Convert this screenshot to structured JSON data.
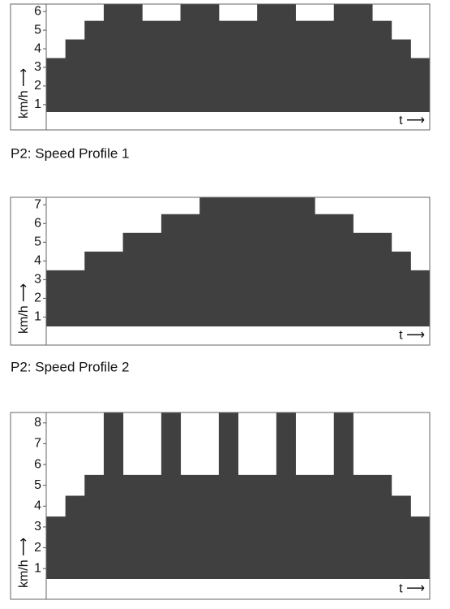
{
  "chart_data": [
    {
      "type": "step",
      "color": "#404040",
      "xlim": [
        0,
        20
      ],
      "ylim": [
        0.6,
        6.4
      ],
      "yticks": [
        1,
        2,
        3,
        4,
        5,
        6
      ],
      "ylabel": "km/h ⟶",
      "xlabel": "t ⟶",
      "caption": "P2: Speed Profile 1",
      "x": [
        0,
        1,
        2,
        3,
        5,
        7,
        9,
        11,
        13,
        15,
        17,
        18,
        19
      ],
      "values": [
        3.5,
        4.5,
        5.5,
        6.4,
        5.5,
        6.4,
        5.5,
        6.4,
        5.5,
        6.4,
        5.5,
        4.5,
        3.5
      ]
    },
    {
      "type": "step",
      "color": "#404040",
      "xlim": [
        0,
        20
      ],
      "ylim": [
        0.5,
        7.4
      ],
      "yticks": [
        1,
        2,
        3,
        4,
        5,
        6,
        7
      ],
      "ylabel": "km/h ⟶",
      "xlabel": "t ⟶",
      "caption": "P2: Speed Profile 2",
      "x": [
        0,
        2,
        4,
        6,
        8,
        14,
        16,
        18,
        19
      ],
      "values": [
        3.5,
        4.5,
        5.5,
        6.5,
        7.4,
        6.5,
        5.5,
        4.5,
        3.5
      ]
    },
    {
      "type": "step",
      "color": "#404040",
      "xlim": [
        0,
        20
      ],
      "ylim": [
        0.5,
        8.5
      ],
      "yticks": [
        1,
        2,
        3,
        4,
        5,
        6,
        7,
        8
      ],
      "ylabel": "km/h ⟶",
      "xlabel": "t ⟶",
      "x": [
        0,
        1,
        2,
        3,
        4,
        6,
        7,
        9,
        10,
        12,
        13,
        15,
        16,
        18,
        19
      ],
      "values": [
        3.5,
        4.5,
        5.5,
        8.5,
        5.5,
        8.5,
        5.5,
        8.5,
        5.5,
        8.5,
        5.5,
        8.5,
        5.5,
        4.5,
        3.5
      ]
    }
  ]
}
